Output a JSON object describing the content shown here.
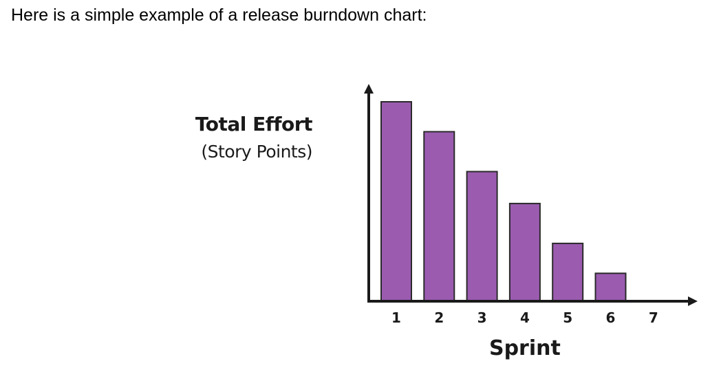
{
  "intro_text": "Here is a simple example of a release burndown chart:",
  "chart_data": {
    "type": "bar",
    "categories": [
      "1",
      "2",
      "3",
      "4",
      "5",
      "6",
      "7"
    ],
    "values": [
      100,
      85,
      65,
      49,
      29,
      14,
      0
    ],
    "ylabel": "Total Effort",
    "ylabel_sub": "(Story Points)",
    "xlabel": "Sprint",
    "ylim": [
      0,
      110
    ],
    "grid": false,
    "bar_color": "#9b5cb0",
    "bar_stroke": "#2a2a2a",
    "axis_color": "#1a1a1a"
  }
}
